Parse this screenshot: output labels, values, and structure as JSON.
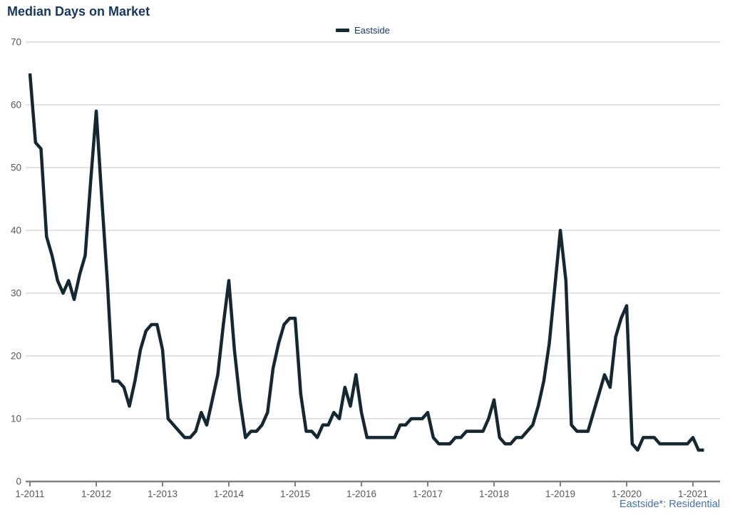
{
  "title": "Median Days on Market",
  "legend": {
    "label": "Eastside"
  },
  "footer": {
    "note": "Eastside*: Residential"
  },
  "colors": {
    "title": "#17375e",
    "legend_text": "#17375e",
    "line": "#152831",
    "grid": "#c9c9c9",
    "axis": "#808080",
    "tick_label": "#595959",
    "footer": "#4472a8"
  },
  "chart_data": {
    "type": "line",
    "title": "Median Days on Market",
    "x_frequency": "monthly",
    "x_start_month": "1-2011",
    "x_end_month": "3-2021",
    "x_tick_labels": [
      "1-2011",
      "1-2012",
      "1-2013",
      "1-2014",
      "1-2015",
      "1-2016",
      "1-2017",
      "1-2018",
      "1-2019",
      "1-2020",
      "1-2021"
    ],
    "xlabel": "",
    "ylabel": "",
    "ylim": [
      0,
      70
    ],
    "y_ticks": [
      0,
      10,
      20,
      30,
      40,
      50,
      60,
      70
    ],
    "grid": "horizontal",
    "legend_position": "top-center",
    "series": [
      {
        "name": "Eastside",
        "values": [
          65,
          54,
          53,
          39,
          36,
          32,
          30,
          32,
          29,
          33,
          36,
          48,
          59,
          45,
          32,
          16,
          16,
          15,
          12,
          16,
          21,
          24,
          25,
          25,
          21,
          10,
          9,
          8,
          7,
          7,
          8,
          11,
          9,
          13,
          17,
          25,
          32,
          21,
          13,
          7,
          8,
          8,
          9,
          11,
          18,
          22,
          25,
          26,
          26,
          14,
          8,
          8,
          7,
          9,
          9,
          11,
          10,
          15,
          12,
          17,
          11,
          7,
          7,
          7,
          7,
          7,
          7,
          9,
          9,
          10,
          10,
          10,
          11,
          7,
          6,
          6,
          6,
          7,
          7,
          8,
          8,
          8,
          8,
          10,
          13,
          7,
          6,
          6,
          7,
          7,
          8,
          9,
          12,
          16,
          22,
          31,
          40,
          32,
          9,
          8,
          8,
          8,
          11,
          14,
          17,
          15,
          23,
          26,
          28,
          6,
          5,
          7,
          7,
          7,
          6,
          6,
          6,
          6,
          6,
          6,
          7,
          5,
          5
        ]
      }
    ]
  }
}
